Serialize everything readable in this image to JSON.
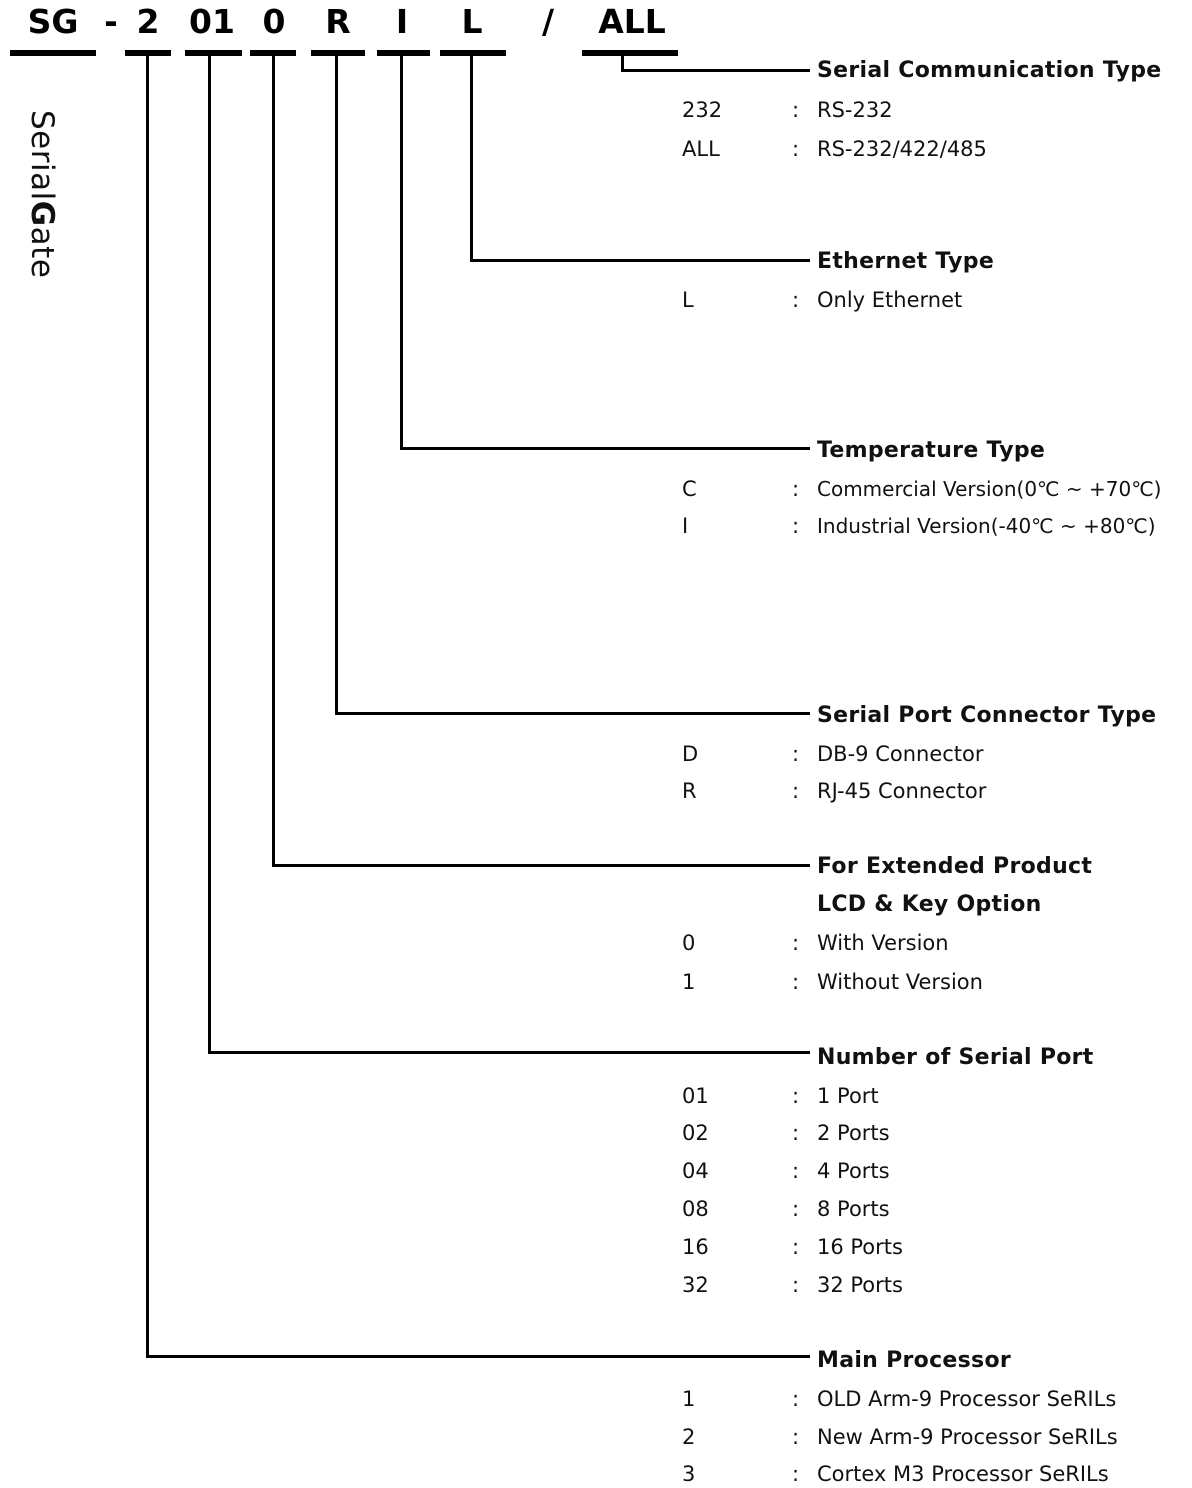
{
  "model_code": {
    "segments": [
      "SG",
      "-",
      "2",
      "01",
      "0",
      "R",
      "I",
      "L",
      "/",
      "ALL"
    ]
  },
  "brand": {
    "prefix": "Serial",
    "bold": "G",
    "suffix": "ate"
  },
  "sections": [
    {
      "title": "Serial Communication Type",
      "options": [
        {
          "code": "232",
          "desc": "RS-232"
        },
        {
          "code": "ALL",
          "desc": "RS-232/422/485"
        }
      ]
    },
    {
      "title": "Ethernet Type",
      "options": [
        {
          "code": "L",
          "desc": "Only Ethernet"
        }
      ]
    },
    {
      "title": "Temperature Type",
      "options": [
        {
          "code": "C",
          "desc": "Commercial Version(0℃ ~ +70℃)"
        },
        {
          "code": "I",
          "desc": "Industrial Version(-40℃ ~ +80℃)"
        }
      ]
    },
    {
      "title": "Serial Port Connector Type",
      "options": [
        {
          "code": "D",
          "desc": "DB-9 Connector"
        },
        {
          "code": "R",
          "desc": "RJ-45 Connector"
        }
      ]
    },
    {
      "title": "For Extended Product",
      "subtitle": "LCD & Key Option",
      "options": [
        {
          "code": "0",
          "desc": "With Version"
        },
        {
          "code": "1",
          "desc": "Without Version"
        }
      ]
    },
    {
      "title": "Number of Serial Port",
      "options": [
        {
          "code": "01",
          "desc": "1 Port"
        },
        {
          "code": "02",
          "desc": "2 Ports"
        },
        {
          "code": "04",
          "desc": "4 Ports"
        },
        {
          "code": "08",
          "desc": "8 Ports"
        },
        {
          "code": "16",
          "desc": "16 Ports"
        },
        {
          "code": "32",
          "desc": "32 Ports"
        }
      ]
    },
    {
      "title": "Main Processor",
      "options": [
        {
          "code": "1",
          "desc": "OLD Arm-9 Processor SeRILs"
        },
        {
          "code": "2",
          "desc": "New Arm-9 Processor SeRILs"
        },
        {
          "code": "3",
          "desc": "Cortex M3 Processor SeRILs"
        }
      ]
    }
  ],
  "separator": ":"
}
